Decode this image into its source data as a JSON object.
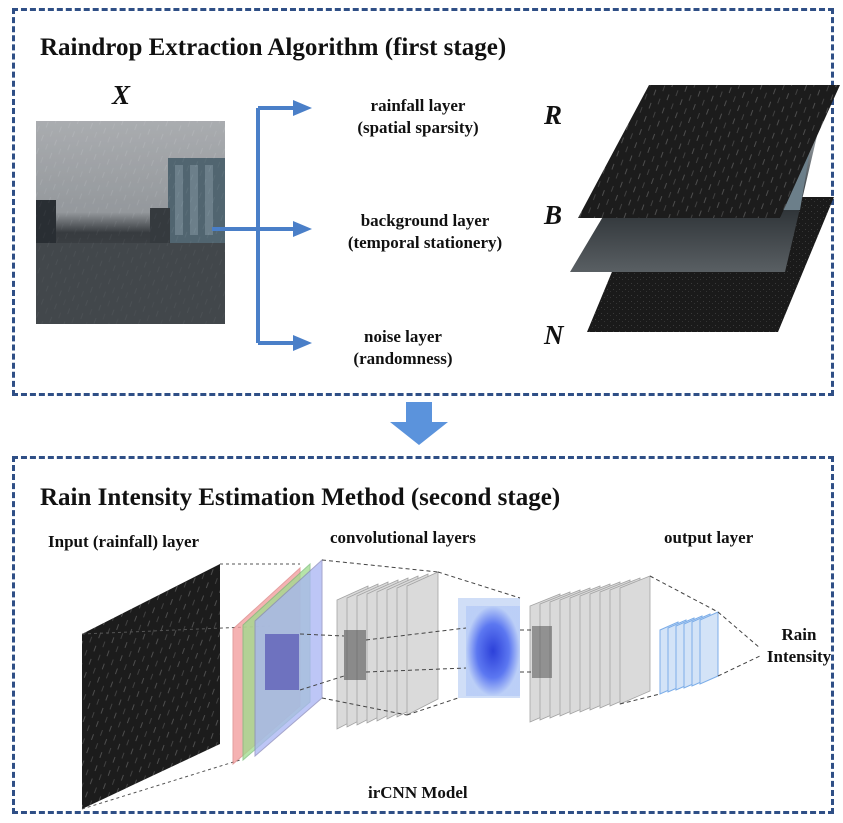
{
  "stage1": {
    "title": "Raindrop Extraction Algorithm (first stage)",
    "input_symbol": "X",
    "layers": [
      {
        "line1": "rainfall layer",
        "line2": "(spatial sparsity)",
        "symbol": "R"
      },
      {
        "line1": "background layer",
        "line2": "(temporal stationery)",
        "symbol": "B"
      },
      {
        "line1": "noise layer",
        "line2": "(randomness)",
        "symbol": "N"
      }
    ]
  },
  "stage2": {
    "title": "Rain Intensity Estimation Method (second stage)",
    "input_label": "Input (rainfall) layer",
    "conv_label": "convolutional layers",
    "output_label": "output layer",
    "result_line1": "Rain",
    "result_line2": "Intensity",
    "model_label": "irCNN Model"
  },
  "colors": {
    "frame": "#2f4f86",
    "arrow": "#4a7fc8",
    "down_arrow": "#5b93dc"
  }
}
